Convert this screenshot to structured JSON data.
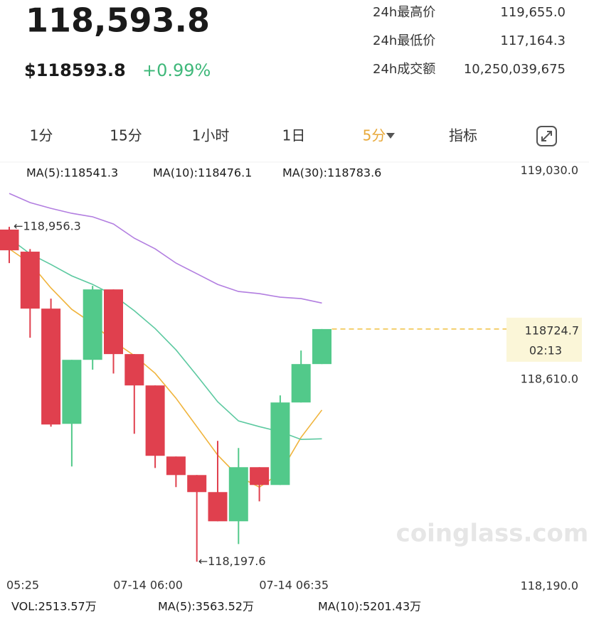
{
  "header": {
    "price": "118,593.8",
    "usd_price": "$118593.8",
    "change": "+0.99%"
  },
  "stats": [
    {
      "label": "24h最高价",
      "value": "119,655.0"
    },
    {
      "label": "24h最低价",
      "value": "117,164.3"
    },
    {
      "label": "24h成交额",
      "value": "10,250,039,675"
    }
  ],
  "tabs": [
    "1分",
    "15分",
    "1小时",
    "1日",
    "5分",
    "指标"
  ],
  "chart_data": {
    "type": "candlestick",
    "categories": [
      "05:25",
      null,
      null,
      null,
      null,
      null,
      null,
      "07-14 06:00",
      null,
      null,
      null,
      null,
      null,
      null,
      "07-14 06:35",
      null
    ],
    "open": [
      118950,
      118900,
      118771,
      118510,
      118655,
      118814.5,
      118668,
      118597,
      118436,
      118394,
      118355.4,
      118289.3,
      118411.8,
      118371.5,
      118558.4,
      118645.4
    ],
    "high": [
      118956.3,
      118906,
      118793.6,
      118655,
      118822.6,
      118814.5,
      118668,
      118597,
      118436,
      118394,
      118471.4,
      118455.3,
      118411.8,
      118574.5,
      118676,
      118724.7
    ],
    "low": [
      118874.1,
      118705,
      118503.6,
      118413.4,
      118632.5,
      118624,
      118487.5,
      118410,
      118366.7,
      118197.6,
      118289.3,
      118237.8,
      118334.4,
      118371.5,
      118558.4,
      118645.4
    ],
    "close": [
      118903.1,
      118771,
      118508.5,
      118655,
      118814.5,
      118668,
      118597,
      118437.6,
      118394,
      118355.4,
      118289.3,
      118411.8,
      118371.5,
      118558.4,
      118645.4,
      118724.7
    ],
    "up_color": "#52c98a",
    "down_color": "#e0404e",
    "ylim": [
      118190,
      119030
    ],
    "yticks": [
      {
        "value": 118190,
        "label": "118,190.0"
      },
      {
        "value": 118610,
        "label": "118,610.0"
      },
      {
        "value": 119030,
        "label": "119,030.0"
      }
    ],
    "series": [
      {
        "label": "MA(5):118541.3",
        "color": "#f0b43c",
        "values": [
          118906.4,
          118874.1,
          118817.8,
          118769.4,
          118737.2,
          118696.9,
          118664.7,
          118624.4,
          118568,
          118503.6,
          118439.2,
          118390.8,
          118366.7,
          118398.9,
          118479.4,
          118541.3
        ]
      },
      {
        "label": "MA(10):118476.1",
        "color": "#5cc9a0",
        "values": [
          118930.5,
          118895.1,
          118870.9,
          118845.1,
          118825.8,
          118801.6,
          118766.2,
          118725.9,
          118677.6,
          118619.6,
          118560,
          118516.5,
          118503.6,
          118492.3,
          118474.6,
          118476.1
        ]
      },
      {
        "label": "MA(30):118783.6",
        "color": "#b27ee0",
        "values": [
          119032,
          119011.1,
          118998.2,
          118986.9,
          118978.9,
          118962.7,
          118930.5,
          118906.4,
          118874.1,
          118850,
          118825.8,
          118809.7,
          118804.9,
          118796.8,
          118793.6,
          118783.6
        ]
      }
    ],
    "high_marker": "←118,956.3",
    "low_marker": "←118,197.6",
    "countdown": "02:13",
    "last_price_color": "#f0c040"
  },
  "volume_legend": [
    {
      "text": "VOL:2513.57万",
      "color": "#333333"
    },
    {
      "text": "MA(5):3563.52万",
      "color": "#f0b43c"
    },
    {
      "text": "MA(10):5201.43万",
      "color": "#5cc9a0"
    }
  ],
  "watermark": "coinglass.com"
}
